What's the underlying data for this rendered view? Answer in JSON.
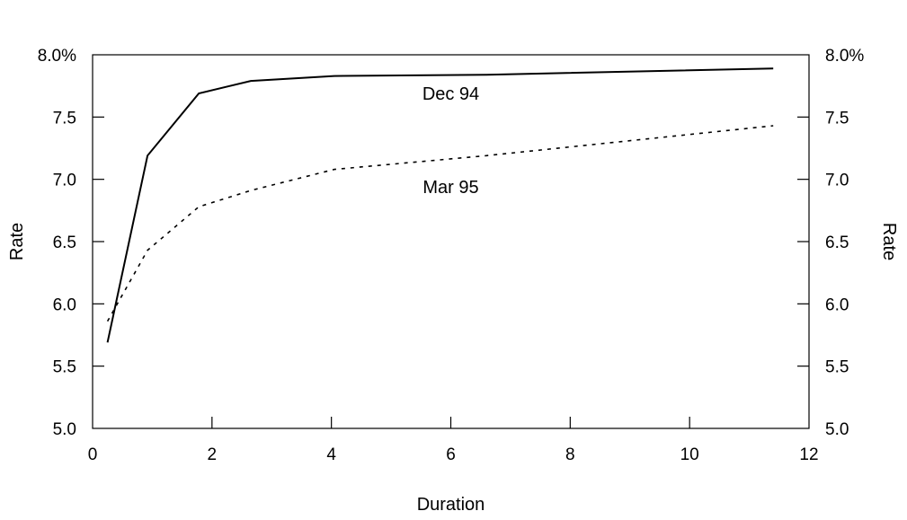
{
  "chart_data": {
    "type": "line",
    "title": "",
    "xlabel": "Duration",
    "ylabel": "Rate",
    "ylabel_right": "Rate",
    "xlim": [
      0,
      12
    ],
    "ylim": [
      5.0,
      8.0
    ],
    "x_ticks": [
      0,
      2,
      4,
      6,
      8,
      10,
      12
    ],
    "x_tick_labels": [
      "0",
      "2",
      "4",
      "6",
      "8",
      "10",
      "12"
    ],
    "y_ticks": [
      5.0,
      5.5,
      6.0,
      6.5,
      7.0,
      7.5,
      8.0
    ],
    "y_tick_labels": [
      "5.0",
      "5.5",
      "6.0",
      "6.5",
      "7.0",
      "7.5",
      "8.0%"
    ],
    "grid": false,
    "legend": "none",
    "series": [
      {
        "name": "Dec 94",
        "style": "solid",
        "color": "#000000",
        "x": [
          0.25,
          0.92,
          1.78,
          2.65,
          4.05,
          6.6,
          11.4
        ],
        "y": [
          5.69,
          7.19,
          7.69,
          7.79,
          7.83,
          7.84,
          7.89
        ]
      },
      {
        "name": "Mar 95",
        "style": "dotted",
        "color": "#000000",
        "x": [
          0.25,
          0.92,
          1.78,
          2.65,
          4.05,
          6.6,
          11.4
        ],
        "y": [
          5.86,
          6.43,
          6.78,
          6.91,
          7.08,
          7.19,
          7.43
        ]
      }
    ],
    "annotations": [
      {
        "text": "Dec 94",
        "x": 6.0,
        "y": 7.69
      },
      {
        "text": "Mar 95",
        "x": 6.0,
        "y": 6.94
      }
    ]
  }
}
